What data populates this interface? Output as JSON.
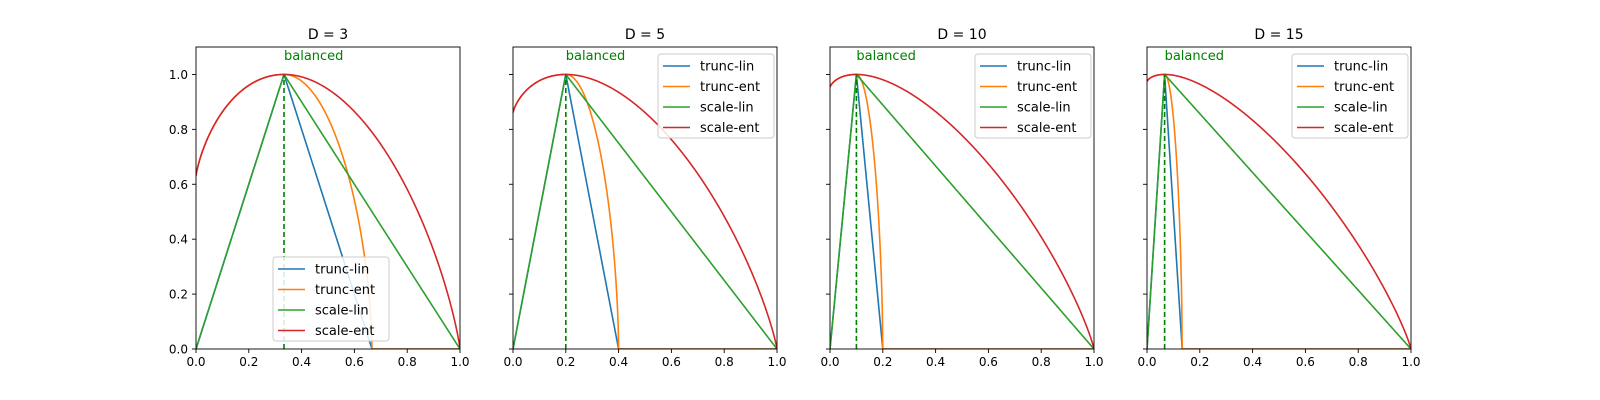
{
  "colors": {
    "trunc-lin": "#1f77b4",
    "trunc-ent": "#ff7f0e",
    "scale-lin": "#2ca02c",
    "scale-ent": "#d62728",
    "balanced": "#008000"
  },
  "chart_data": [
    {
      "type": "line",
      "title": "D = 3",
      "xlim": [
        0,
        1
      ],
      "ylim": [
        0,
        1.1
      ],
      "xticks": [
        "0.0",
        "0.2",
        "0.4",
        "0.6",
        "0.8",
        "1.0"
      ],
      "yticks": [
        "0.0",
        "0.2",
        "0.4",
        "0.6",
        "0.8",
        "1.0"
      ],
      "legend": "lower-center",
      "annotation": {
        "text": "balanced",
        "x": 0.3333
      },
      "series": [
        {
          "name": "trunc-lin",
          "kind": "trunc-lin",
          "D": 3
        },
        {
          "name": "trunc-ent",
          "kind": "trunc-ent",
          "D": 3
        },
        {
          "name": "scale-lin",
          "kind": "scale-lin",
          "D": 3
        },
        {
          "name": "scale-ent",
          "kind": "scale-ent",
          "D": 3
        }
      ]
    },
    {
      "type": "line",
      "title": "D = 5",
      "xlim": [
        0,
        1
      ],
      "ylim": [
        0,
        1.1
      ],
      "xticks": [
        "0.0",
        "0.2",
        "0.4",
        "0.6",
        "0.8",
        "1.0"
      ],
      "yticks": [],
      "legend": "top-right",
      "annotation": {
        "text": "balanced",
        "x": 0.2
      },
      "series": [
        {
          "name": "trunc-lin",
          "kind": "trunc-lin",
          "D": 5
        },
        {
          "name": "trunc-ent",
          "kind": "trunc-ent",
          "D": 5
        },
        {
          "name": "scale-lin",
          "kind": "scale-lin",
          "D": 5
        },
        {
          "name": "scale-ent",
          "kind": "scale-ent",
          "D": 5
        }
      ]
    },
    {
      "type": "line",
      "title": "D = 10",
      "xlim": [
        0,
        1
      ],
      "ylim": [
        0,
        1.1
      ],
      "xticks": [
        "0.0",
        "0.2",
        "0.4",
        "0.6",
        "0.8",
        "1.0"
      ],
      "yticks": [],
      "legend": "top-right",
      "annotation": {
        "text": "balanced",
        "x": 0.1
      },
      "series": [
        {
          "name": "trunc-lin",
          "kind": "trunc-lin",
          "D": 10
        },
        {
          "name": "trunc-ent",
          "kind": "trunc-ent",
          "D": 10
        },
        {
          "name": "scale-lin",
          "kind": "scale-lin",
          "D": 10
        },
        {
          "name": "scale-ent",
          "kind": "scale-ent",
          "D": 10
        }
      ]
    },
    {
      "type": "line",
      "title": "D = 15",
      "xlim": [
        0,
        1
      ],
      "ylim": [
        0,
        1.1
      ],
      "xticks": [
        "0.0",
        "0.2",
        "0.4",
        "0.6",
        "0.8",
        "1.0"
      ],
      "yticks": [],
      "legend": "top-right",
      "annotation": {
        "text": "balanced",
        "x": 0.0667
      },
      "series": [
        {
          "name": "trunc-lin",
          "kind": "trunc-lin",
          "D": 15
        },
        {
          "name": "trunc-ent",
          "kind": "trunc-ent",
          "D": 15
        },
        {
          "name": "scale-lin",
          "kind": "scale-lin",
          "D": 15
        },
        {
          "name": "scale-ent",
          "kind": "scale-ent",
          "D": 15
        }
      ]
    }
  ]
}
